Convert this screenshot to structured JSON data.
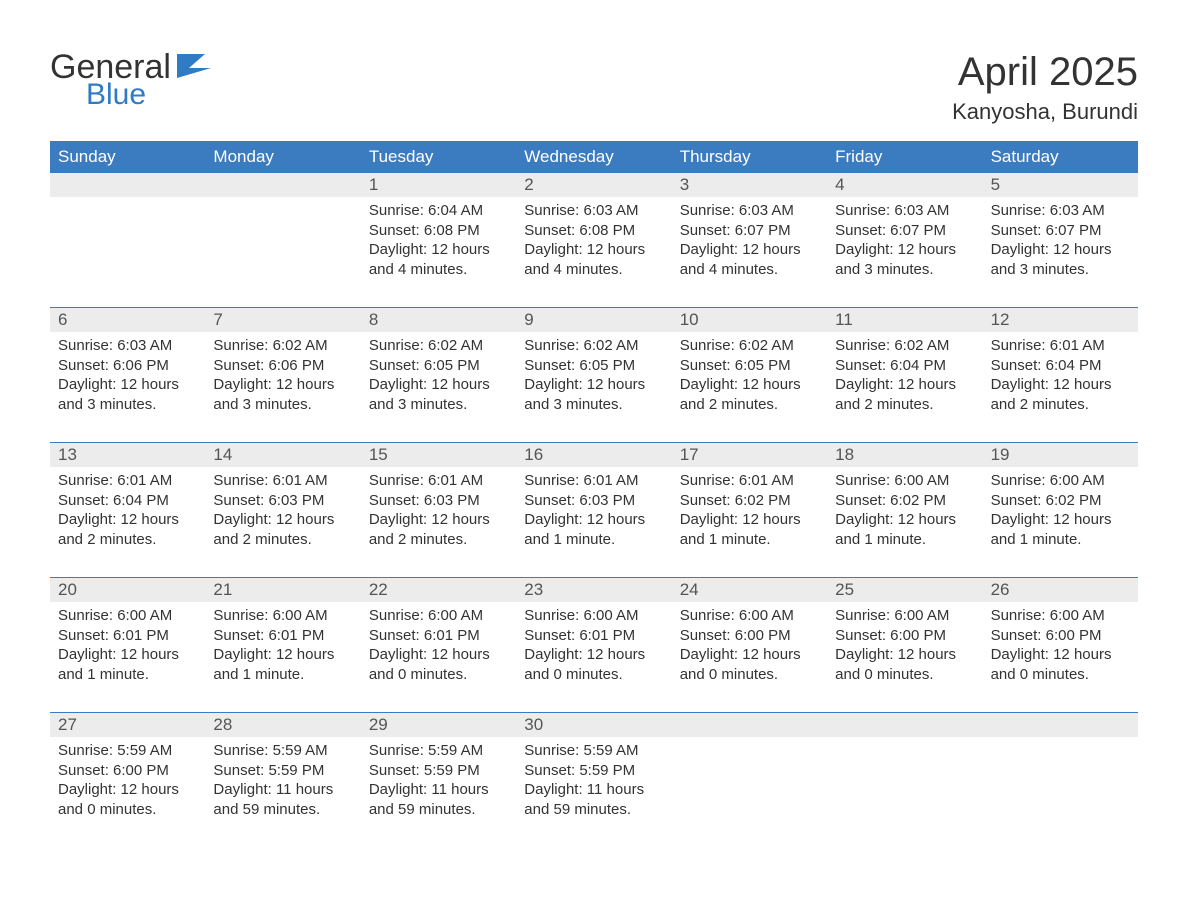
{
  "logo": {
    "general": "General",
    "blue": "Blue"
  },
  "title": "April 2025",
  "location": "Kanyosha, Burundi",
  "colors": {
    "header_bg": "#3b7bbf",
    "header_text": "#ffffff",
    "datebar_bg": "#ececec",
    "datebar_border": "#3b7bbf",
    "text": "#333333",
    "logo_blue": "#2f7bc4",
    "background": "#ffffff"
  },
  "day_names": [
    "Sunday",
    "Monday",
    "Tuesday",
    "Wednesday",
    "Thursday",
    "Friday",
    "Saturday"
  ],
  "weeks": [
    [
      null,
      null,
      {
        "d": "1",
        "sr": "6:04 AM",
        "ss": "6:08 PM",
        "dl": "12 hours and 4 minutes."
      },
      {
        "d": "2",
        "sr": "6:03 AM",
        "ss": "6:08 PM",
        "dl": "12 hours and 4 minutes."
      },
      {
        "d": "3",
        "sr": "6:03 AM",
        "ss": "6:07 PM",
        "dl": "12 hours and 4 minutes."
      },
      {
        "d": "4",
        "sr": "6:03 AM",
        "ss": "6:07 PM",
        "dl": "12 hours and 3 minutes."
      },
      {
        "d": "5",
        "sr": "6:03 AM",
        "ss": "6:07 PM",
        "dl": "12 hours and 3 minutes."
      }
    ],
    [
      {
        "d": "6",
        "sr": "6:03 AM",
        "ss": "6:06 PM",
        "dl": "12 hours and 3 minutes."
      },
      {
        "d": "7",
        "sr": "6:02 AM",
        "ss": "6:06 PM",
        "dl": "12 hours and 3 minutes."
      },
      {
        "d": "8",
        "sr": "6:02 AM",
        "ss": "6:05 PM",
        "dl": "12 hours and 3 minutes."
      },
      {
        "d": "9",
        "sr": "6:02 AM",
        "ss": "6:05 PM",
        "dl": "12 hours and 3 minutes."
      },
      {
        "d": "10",
        "sr": "6:02 AM",
        "ss": "6:05 PM",
        "dl": "12 hours and 2 minutes."
      },
      {
        "d": "11",
        "sr": "6:02 AM",
        "ss": "6:04 PM",
        "dl": "12 hours and 2 minutes."
      },
      {
        "d": "12",
        "sr": "6:01 AM",
        "ss": "6:04 PM",
        "dl": "12 hours and 2 minutes."
      }
    ],
    [
      {
        "d": "13",
        "sr": "6:01 AM",
        "ss": "6:04 PM",
        "dl": "12 hours and 2 minutes."
      },
      {
        "d": "14",
        "sr": "6:01 AM",
        "ss": "6:03 PM",
        "dl": "12 hours and 2 minutes."
      },
      {
        "d": "15",
        "sr": "6:01 AM",
        "ss": "6:03 PM",
        "dl": "12 hours and 2 minutes."
      },
      {
        "d": "16",
        "sr": "6:01 AM",
        "ss": "6:03 PM",
        "dl": "12 hours and 1 minute."
      },
      {
        "d": "17",
        "sr": "6:01 AM",
        "ss": "6:02 PM",
        "dl": "12 hours and 1 minute."
      },
      {
        "d": "18",
        "sr": "6:00 AM",
        "ss": "6:02 PM",
        "dl": "12 hours and 1 minute."
      },
      {
        "d": "19",
        "sr": "6:00 AM",
        "ss": "6:02 PM",
        "dl": "12 hours and 1 minute."
      }
    ],
    [
      {
        "d": "20",
        "sr": "6:00 AM",
        "ss": "6:01 PM",
        "dl": "12 hours and 1 minute."
      },
      {
        "d": "21",
        "sr": "6:00 AM",
        "ss": "6:01 PM",
        "dl": "12 hours and 1 minute."
      },
      {
        "d": "22",
        "sr": "6:00 AM",
        "ss": "6:01 PM",
        "dl": "12 hours and 0 minutes."
      },
      {
        "d": "23",
        "sr": "6:00 AM",
        "ss": "6:01 PM",
        "dl": "12 hours and 0 minutes."
      },
      {
        "d": "24",
        "sr": "6:00 AM",
        "ss": "6:00 PM",
        "dl": "12 hours and 0 minutes."
      },
      {
        "d": "25",
        "sr": "6:00 AM",
        "ss": "6:00 PM",
        "dl": "12 hours and 0 minutes."
      },
      {
        "d": "26",
        "sr": "6:00 AM",
        "ss": "6:00 PM",
        "dl": "12 hours and 0 minutes."
      }
    ],
    [
      {
        "d": "27",
        "sr": "5:59 AM",
        "ss": "6:00 PM",
        "dl": "12 hours and 0 minutes."
      },
      {
        "d": "28",
        "sr": "5:59 AM",
        "ss": "5:59 PM",
        "dl": "11 hours and 59 minutes."
      },
      {
        "d": "29",
        "sr": "5:59 AM",
        "ss": "5:59 PM",
        "dl": "11 hours and 59 minutes."
      },
      {
        "d": "30",
        "sr": "5:59 AM",
        "ss": "5:59 PM",
        "dl": "11 hours and 59 minutes."
      },
      null,
      null,
      null
    ]
  ],
  "labels": {
    "sunrise": "Sunrise: ",
    "sunset": "Sunset: ",
    "daylight": "Daylight: "
  }
}
